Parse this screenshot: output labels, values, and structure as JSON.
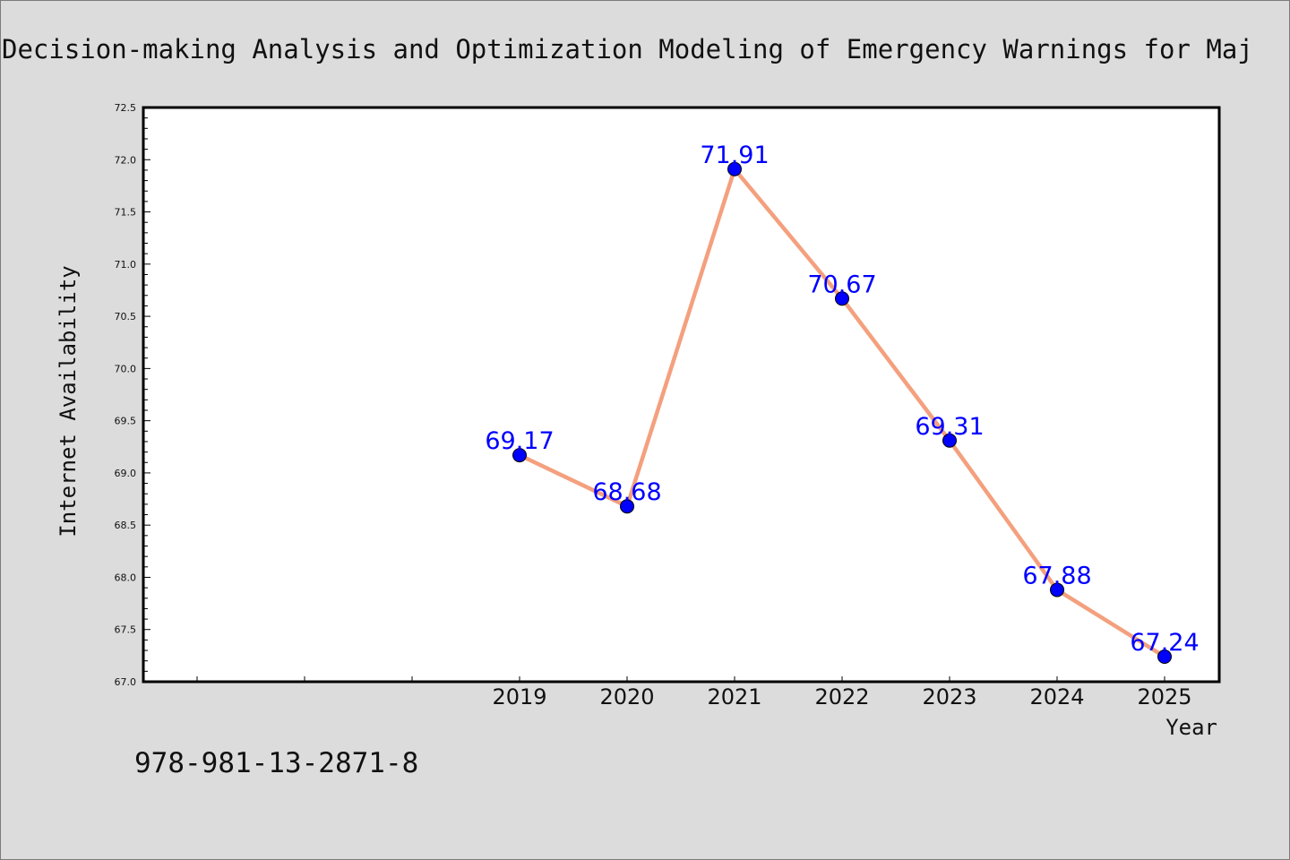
{
  "chart_data": {
    "type": "line",
    "title": "Decision-making Analysis and Optimization Modeling of Emergency Warnings for Maj",
    "xlabel": "Year",
    "ylabel": "Internet Availability",
    "x": [
      "2019",
      "2020",
      "2021",
      "2022",
      "2023",
      "2024",
      "2025"
    ],
    "x_slots_before_data": 3,
    "series": [
      {
        "values": [
          69.17,
          68.68,
          71.91,
          70.67,
          69.31,
          67.88,
          67.24
        ],
        "data_labels": [
          "69.17",
          "68.68",
          "71.91",
          "70.67",
          "69.31",
          "67.88",
          "67.24"
        ],
        "line_color": "#f4a07e",
        "marker_color": "#0000ff"
      }
    ],
    "ylim": [
      67.0,
      72.5
    ],
    "yticks": [
      "67.0",
      "67.5",
      "68.0",
      "68.5",
      "69.0",
      "69.5",
      "70.0",
      "70.5",
      "71.0",
      "71.5",
      "72.0",
      "72.5"
    ],
    "grid": false,
    "legend": "none"
  },
  "footer": {
    "isbn": "978-981-13-2871-8"
  },
  "colors": {
    "background": "#dcdcdc",
    "plot_area": "#ffffff",
    "line": "#f4a07e",
    "marker": "#0000ff",
    "label": "#0000ff"
  }
}
